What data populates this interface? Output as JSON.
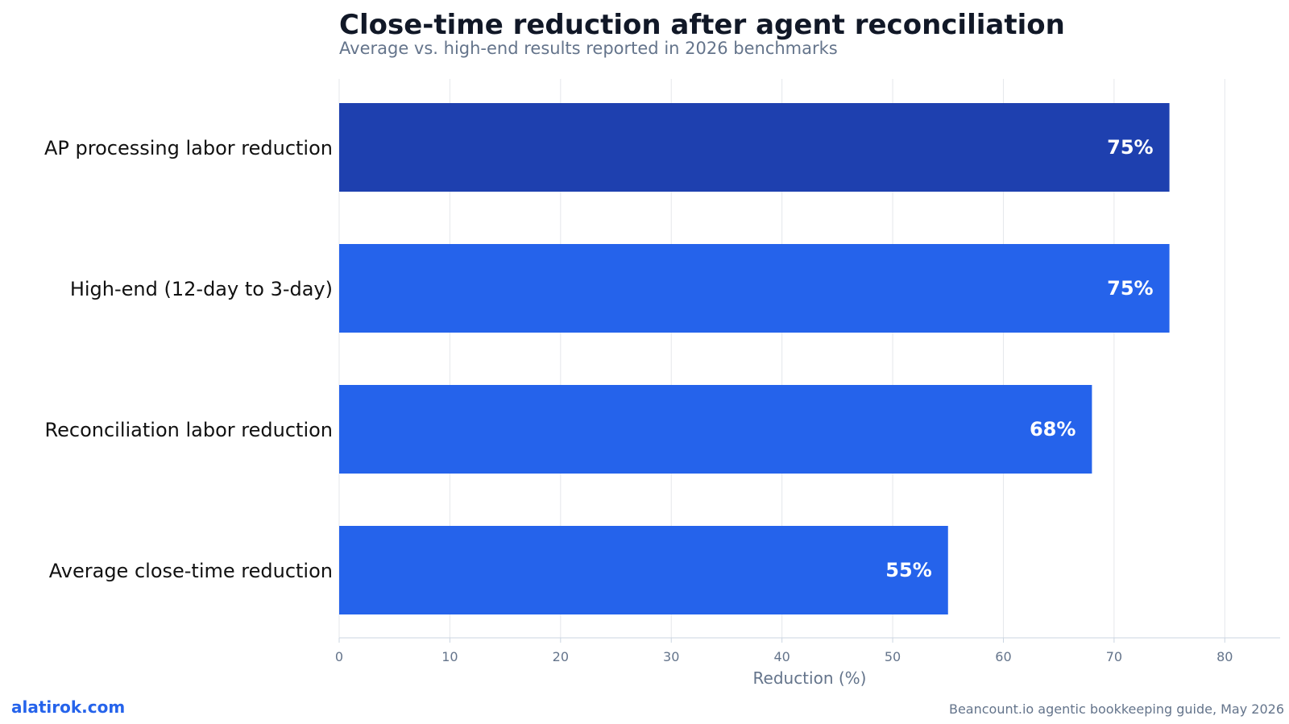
{
  "chart_data": {
    "type": "bar",
    "orientation": "horizontal",
    "title": "Close-time reduction after agent reconciliation",
    "subtitle": "Average vs. high-end results reported in 2026 benchmarks",
    "xlabel": "Reduction (%)",
    "ylabel": "",
    "xlim": [
      0,
      85
    ],
    "xticks": [
      "0",
      "10",
      "20",
      "30",
      "40",
      "50",
      "60",
      "70",
      "80"
    ],
    "grid": true,
    "categories": [
      "AP processing labor reduction",
      "High-end (12-day to 3-day)",
      "Reconciliation labor reduction",
      "Average close-time reduction"
    ],
    "values": [
      75,
      75,
      68,
      55
    ],
    "value_labels": [
      "75%",
      "75%",
      "68%",
      "55%"
    ],
    "colors": [
      "#1e40af",
      "#2563eb",
      "#2563eb",
      "#2563eb"
    ]
  },
  "footer": {
    "brand": "alatirok.com",
    "source": "Beancount.io agentic bookkeeping guide, May 2026"
  },
  "colors": {
    "grid": "#e5e7eb",
    "axis": "#cbd5e1"
  }
}
